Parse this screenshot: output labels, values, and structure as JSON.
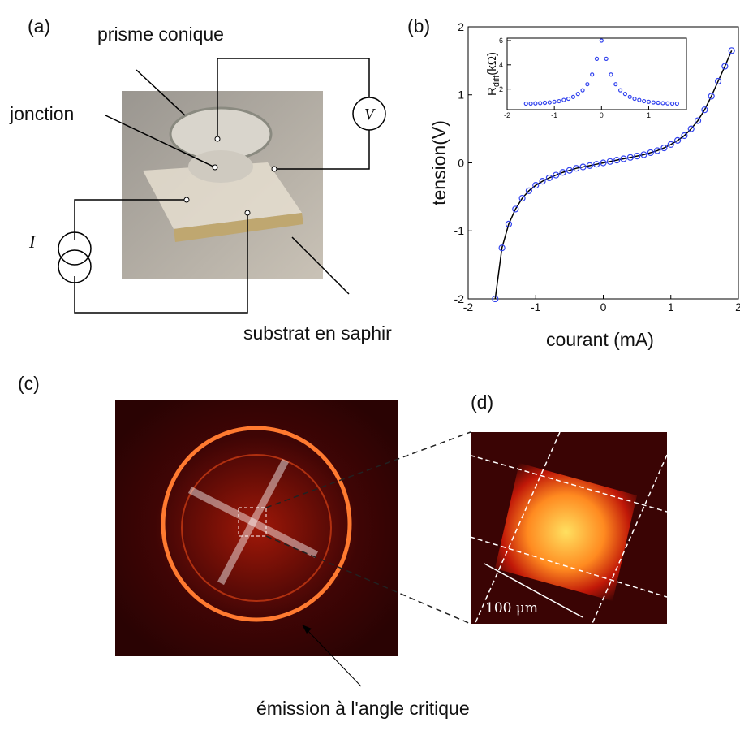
{
  "panels": {
    "a": {
      "label": "(a)",
      "prism": "prisme conique",
      "junction": "jonction",
      "voltage": "V",
      "current": "I",
      "substrate": "substrat en saphir"
    },
    "b": {
      "label": "(b)"
    },
    "c": {
      "label": "(c)",
      "caption": "émission à l'angle critique"
    },
    "d": {
      "label": "(d)",
      "scale": "100 μm"
    }
  },
  "chart_data": [
    {
      "type": "scatter",
      "xlabel": "courant (mA)",
      "ylabel": "tension(V)",
      "xlim": [
        -2,
        2
      ],
      "ylim": [
        -2,
        2
      ],
      "xticks": [
        -2,
        -1,
        0,
        1,
        2
      ],
      "yticks": [
        -2,
        -1,
        0,
        1,
        2
      ],
      "series": [
        {
          "color": "#3344ee",
          "line_color": "#000000",
          "x": [
            -1.6,
            -1.5,
            -1.4,
            -1.3,
            -1.2,
            -1.1,
            -1.0,
            -0.9,
            -0.8,
            -0.7,
            -0.6,
            -0.5,
            -0.4,
            -0.3,
            -0.2,
            -0.1,
            0,
            0.1,
            0.2,
            0.3,
            0.4,
            0.5,
            0.6,
            0.7,
            0.8,
            0.9,
            1.0,
            1.1,
            1.2,
            1.3,
            1.4,
            1.5,
            1.6,
            1.7,
            1.8,
            1.9
          ],
          "values": [
            -2,
            -1.25,
            -0.9,
            -0.68,
            -0.52,
            -0.41,
            -0.33,
            -0.27,
            -0.22,
            -0.18,
            -0.14,
            -0.11,
            -0.08,
            -0.06,
            -0.04,
            -0.02,
            0,
            0.02,
            0.04,
            0.06,
            0.08,
            0.1,
            0.12,
            0.15,
            0.18,
            0.22,
            0.27,
            0.33,
            0.4,
            0.5,
            0.62,
            0.78,
            0.98,
            1.2,
            1.42,
            1.65
          ]
        }
      ]
    },
    {
      "type": "scatter",
      "ylabel": "R",
      "ylabel_subscript": "diff",
      "ylabel_unit": "(kΩ)",
      "xlim": [
        -2,
        1.8
      ],
      "ylim": [
        0.3,
        6.2
      ],
      "xticks": [
        -2,
        -1,
        0,
        1
      ],
      "yticks": [
        2,
        4,
        6
      ],
      "series": [
        {
          "color": "#3344ee",
          "x": [
            -1.6,
            -1.5,
            -1.4,
            -1.3,
            -1.2,
            -1.1,
            -1.0,
            -0.9,
            -0.8,
            -0.7,
            -0.6,
            -0.5,
            -0.4,
            -0.3,
            -0.2,
            -0.1,
            0,
            0.1,
            0.2,
            0.3,
            0.4,
            0.5,
            0.6,
            0.7,
            0.8,
            0.9,
            1.0,
            1.1,
            1.2,
            1.3,
            1.4,
            1.5,
            1.6
          ],
          "values": [
            0.8,
            0.8,
            0.82,
            0.84,
            0.87,
            0.9,
            0.95,
            1.0,
            1.1,
            1.2,
            1.35,
            1.6,
            1.9,
            2.4,
            3.2,
            4.5,
            6,
            4.5,
            3.2,
            2.4,
            1.9,
            1.6,
            1.35,
            1.2,
            1.1,
            1.0,
            0.95,
            0.9,
            0.87,
            0.84,
            0.82,
            0.8,
            0.8
          ]
        }
      ]
    }
  ]
}
